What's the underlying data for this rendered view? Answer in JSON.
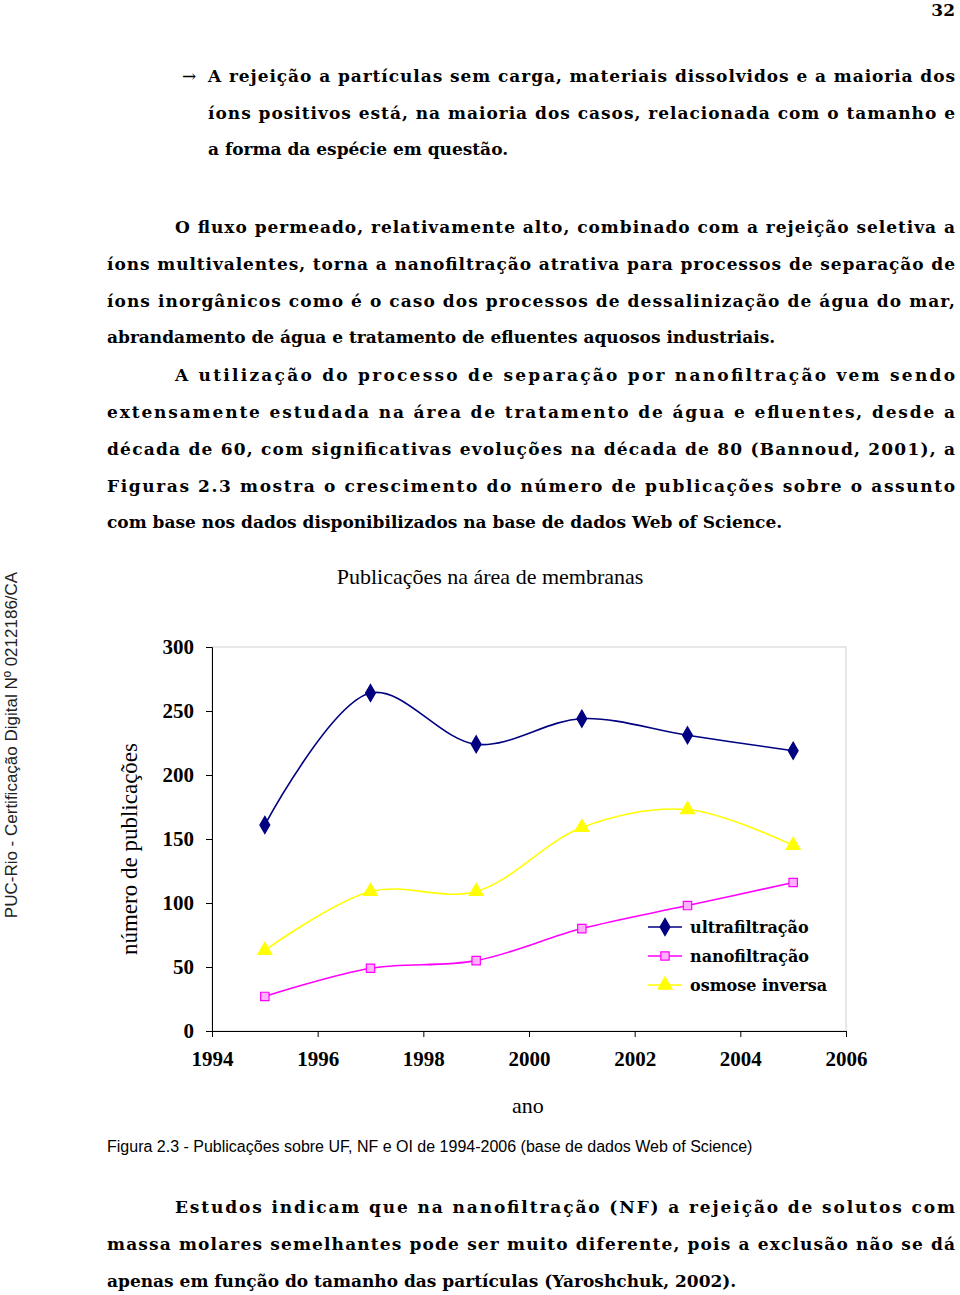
{
  "page_number": "32",
  "bullet": {
    "symbol": "→",
    "lines": [
      "A rejeição a partículas sem carga, materiais dissolvidos e a maioria dos",
      "íons positivos está, na maioria dos casos, relacionada com o tamanho e",
      "a forma da espécie em questão."
    ]
  },
  "paragraphs": [
    {
      "lines": [
        "O fluxo permeado, relativamente alto, combinado com a rejeição seletiva a",
        "íons multivalentes, torna a nanofiltração atrativa para processos de separação de",
        "íons inorgânicos como é o caso dos processos de dessalinização de água do mar,",
        "abrandamento de água e tratamento de efluentes aquosos industriais."
      ]
    },
    {
      "lines": [
        "A utilização do processo de separação por nanofiltração vem sendo",
        "extensamente estudada na área de tratamento de água e efluentes, desde a",
        "década de 60, com significativas evoluções na década de 80 (Bannoud, 2001), a",
        "Figuras 2.3 mostra o crescimento do número de publicações sobre o assunto",
        "com base nos dados disponibilizados na base de dados Web of Science."
      ]
    },
    {
      "lines": [
        "Estudos indicam que na nanofiltração (NF) a rejeição de solutos com",
        "massa molares semelhantes pode ser muito diferente, pois a exclusão não se dá",
        "apenas em função do tamanho das partículas (Yaroshchuk, 2002)."
      ]
    }
  ],
  "side_note": "PUC-Rio - Certificação Digital Nº 0212186/CA",
  "caption": "Figura 2.3 - Publicações sobre UF, NF e OI de 1994-2006 (base de dados Web of Science)",
  "chart_data": {
    "type": "line",
    "title": "Publicações na área de membranas",
    "x_label": "ano",
    "y_label": "número de publicações",
    "x": [
      1995,
      1997,
      1999,
      2001,
      2003,
      2005
    ],
    "series": [
      {
        "name": "ultrafiltração",
        "color": "#000080",
        "marker": "diamond",
        "line_style": "smooth",
        "values": [
          161,
          264,
          224,
          244,
          231,
          219
        ]
      },
      {
        "name": "nanofiltração",
        "color": "#ff00ff",
        "marker": "square",
        "line_style": "smooth",
        "values": [
          27,
          49,
          55,
          80,
          98,
          116
        ]
      },
      {
        "name": "osmose inversa",
        "color": "#ffff00",
        "marker": "triangle",
        "line_style": "smooth",
        "values": [
          63,
          109,
          109,
          159,
          173,
          145
        ]
      }
    ],
    "xlim": [
      1994,
      2006
    ],
    "xticks": [
      1994,
      1996,
      1998,
      2000,
      2002,
      2004,
      2006
    ],
    "ylim": [
      0,
      300
    ],
    "yticks": [
      0,
      50,
      100,
      150,
      200,
      250,
      300
    ],
    "grid": false,
    "legend": "lower right"
  }
}
